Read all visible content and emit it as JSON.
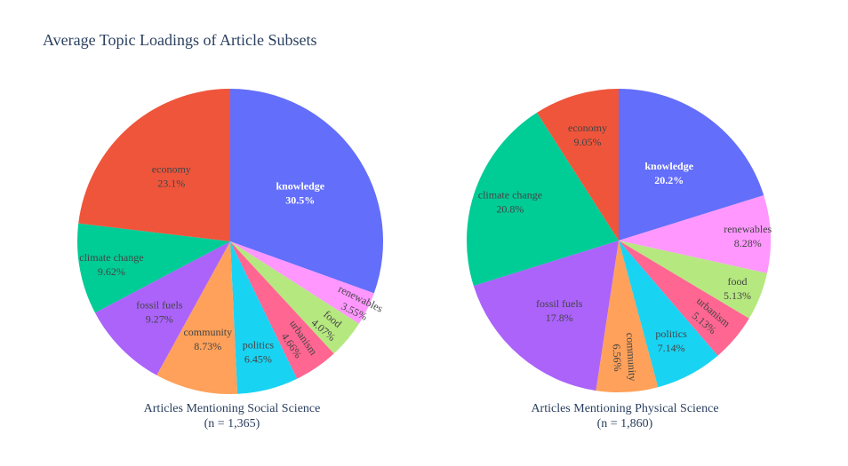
{
  "figure": {
    "title": "Average Topic Loadings of Article Subsets"
  },
  "colors": {
    "knowledge": "#636EFA",
    "economy": "#EF553B",
    "climate change": "#00CC96",
    "fossil fuels": "#AB63FA",
    "community": "#FFA15A",
    "politics": "#19D3F3",
    "urbanism": "#FF6692",
    "food": "#B6E880",
    "renewables": "#FF97FF"
  },
  "chart_data": [
    {
      "type": "pie",
      "subtitle": [
        "Articles Mentioning Social Science",
        "(n = 1,365)"
      ],
      "labels": [
        "knowledge",
        "renewables",
        "food",
        "urbanism",
        "politics",
        "community",
        "fossil fuels",
        "climate change",
        "economy"
      ],
      "values": [
        30.5,
        3.55,
        4.07,
        4.66,
        6.45,
        8.73,
        9.27,
        9.62,
        23.1
      ],
      "display": [
        "30.5%",
        "3.55%",
        "4.07%",
        "4.66%",
        "6.45%",
        "8.73%",
        "9.27%",
        "9.62%",
        "23.1%"
      ]
    },
    {
      "type": "pie",
      "subtitle": [
        "Articles Mentioning Physical Science",
        "(n = 1,860)"
      ],
      "labels": [
        "knowledge",
        "renewables",
        "food",
        "urbanism",
        "politics",
        "community",
        "fossil fuels",
        "climate change",
        "economy"
      ],
      "values": [
        20.2,
        8.28,
        5.13,
        5.13,
        7.14,
        6.56,
        17.8,
        20.8,
        9.05
      ],
      "display": [
        "20.2%",
        "8.28%",
        "5.13%",
        "5.13%",
        "7.14%",
        "6.56%",
        "17.8%",
        "20.8%",
        "9.05%"
      ]
    }
  ]
}
